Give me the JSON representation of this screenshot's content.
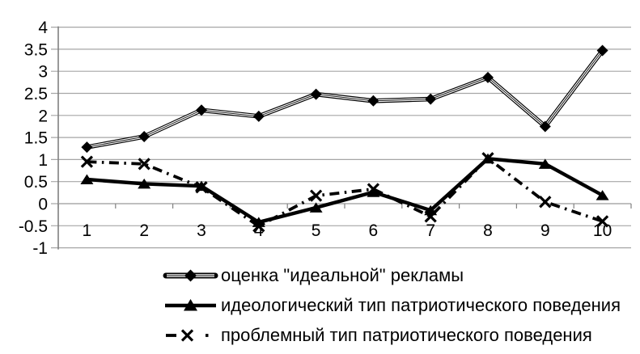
{
  "chart_data": {
    "type": "line",
    "title": "",
    "x_labels": [
      "1",
      "2",
      "3",
      "4",
      "5",
      "6",
      "7",
      "8",
      "9",
      "10"
    ],
    "y_ticks": [
      "4",
      "3.5",
      "3",
      "2.5",
      "2",
      "1.5",
      "1",
      "0.5",
      "0",
      "-0.5",
      "-1"
    ],
    "ylim": [
      -1,
      4
    ],
    "ytick_step": 0.5,
    "grid": true,
    "legend_position": "bottom",
    "background_color": "#ffffff",
    "gridline_color": "#a6a6a6",
    "axis_color": "#808080",
    "series_color": "#000000",
    "series": [
      {
        "name": "оценка \"идеальной\" рекламы",
        "marker": "diamond",
        "line_style": "double",
        "values": [
          1.28,
          1.52,
          2.12,
          1.98,
          2.48,
          2.33,
          2.37,
          2.86,
          1.75,
          3.47
        ]
      },
      {
        "name": "идеологический тип патриотического поведения",
        "marker": "triangle-up",
        "line_style": "solid",
        "values": [
          0.55,
          0.45,
          0.4,
          -0.42,
          -0.09,
          0.26,
          -0.15,
          1.02,
          0.9,
          0.19
        ]
      },
      {
        "name": "проблемный тип патриотического поведения",
        "marker": "x-cross",
        "line_style": "dash-dot",
        "values": [
          0.95,
          0.9,
          0.37,
          -0.51,
          0.18,
          0.33,
          -0.29,
          1.03,
          0.04,
          -0.4
        ]
      }
    ]
  }
}
